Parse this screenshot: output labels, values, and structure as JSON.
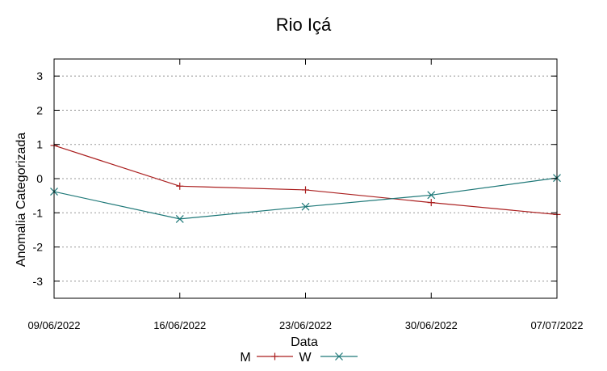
{
  "chart_data": {
    "type": "line",
    "title": "Rio Içá",
    "xlabel": "Data",
    "ylabel": "Anomalia Categorizada",
    "categories": [
      "09/06/2022",
      "16/06/2022",
      "23/06/2022",
      "30/06/2022",
      "07/07/2022"
    ],
    "yticks": [
      "3",
      "2",
      "1",
      "0",
      "-1",
      "-2",
      "-3"
    ],
    "ytick_values": [
      3,
      2,
      1,
      0,
      -1,
      -2,
      -3
    ],
    "ylim": [
      -3.5,
      3.5
    ],
    "grid": true,
    "legend_position": "bottom-center",
    "series": [
      {
        "name": "M",
        "values": [
          0.97,
          -0.22,
          -0.33,
          -0.7,
          -1.05
        ],
        "color": "#aa1e1e",
        "marker": "plus"
      },
      {
        "name": "W",
        "values": [
          -0.38,
          -1.18,
          -0.82,
          -0.48,
          0.02
        ],
        "color": "#1e7878",
        "marker": "cross"
      }
    ]
  }
}
